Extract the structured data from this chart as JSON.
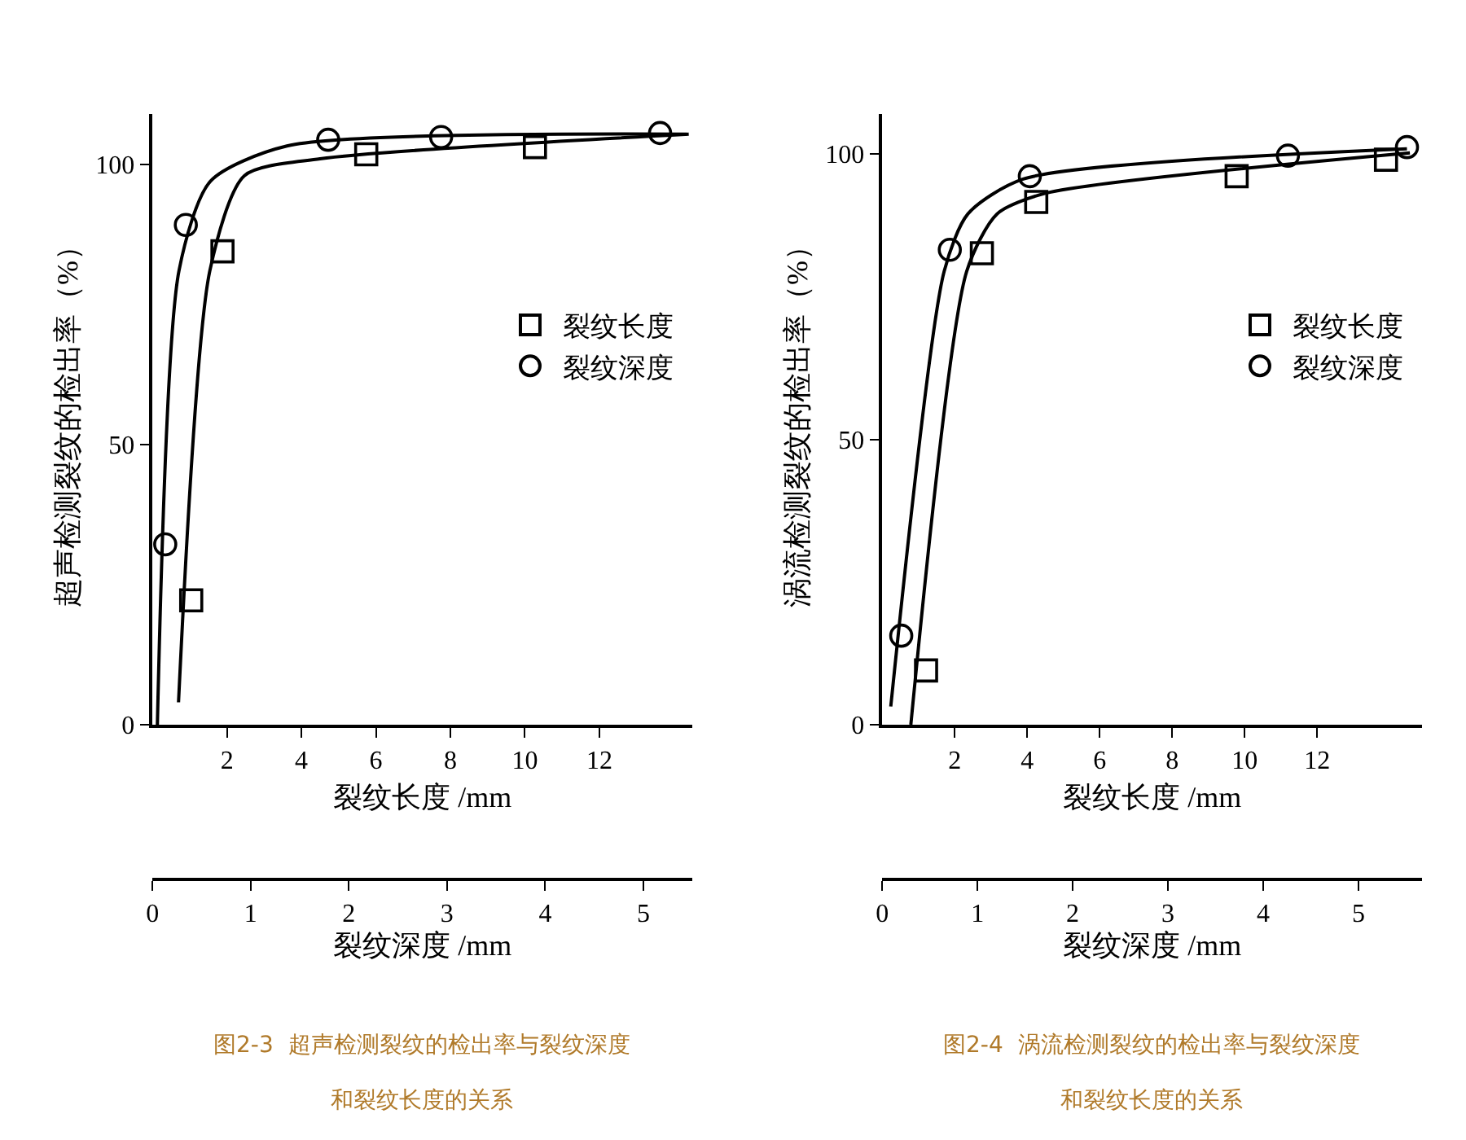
{
  "chart_data": [
    {
      "type": "scatter",
      "ylabel": "超声检测裂纹的检出率（%）",
      "xlabel": "裂纹长度 /mm",
      "x2label": "裂纹深度 /mm",
      "xlim": [
        0,
        14.5
      ],
      "xticks": [
        2,
        4,
        6,
        8,
        10,
        12
      ],
      "x2lim": [
        0,
        5.5
      ],
      "x2ticks": [
        0,
        1,
        2,
        3,
        4,
        5
      ],
      "ylim": [
        0,
        109
      ],
      "yticks": [
        0,
        50,
        100
      ],
      "legend": "right",
      "series": [
        {
          "name": "裂纹长度",
          "marker": "square",
          "color": "#000000",
          "x": [
            1.04,
            1.88,
            5.74,
            10.27
          ],
          "values": [
            22.2,
            84.5,
            101.8,
            103.1
          ]
        },
        {
          "name": "裂纹深度",
          "marker": "circle",
          "color": "#000000",
          "axis": "x2",
          "x": [
            0.13,
            0.34,
            1.79,
            2.94,
            5.17
          ],
          "values": [
            32.2,
            89.2,
            104.4,
            104.9,
            105.6
          ]
        },
        {
          "type": "line",
          "marker": "none",
          "color": "#000000",
          "x": [
            0.7,
            1.54,
            2.47,
            4.5,
            14.4
          ],
          "values": [
            4,
            81,
            98,
            101,
            105.4
          ]
        },
        {
          "type": "line",
          "marker": "none",
          "color": "#000000",
          "axis": "x2",
          "x": [
            0.05,
            0.27,
            0.59,
            1.37,
            5.44
          ],
          "values": [
            0,
            81,
            97,
            103.3,
            105.4
          ]
        }
      ],
      "annotations": [
        "图2-3  超声检测裂纹的检出率与裂纹深度",
        "和裂纹长度的关系"
      ]
    },
    {
      "type": "scatter",
      "ylabel": "涡流检测裂纹的检出率（%）",
      "xlabel": "裂纹长度 /mm",
      "x2label": "裂纹深度 /mm",
      "xlim": [
        0,
        14.9
      ],
      "xticks": [
        2,
        4,
        6,
        8,
        10,
        12
      ],
      "x2lim": [
        0,
        5.67
      ],
      "x2ticks": [
        0,
        1,
        2,
        3,
        4,
        5
      ],
      "ylim": [
        0,
        107
      ],
      "yticks": [
        0,
        50,
        100
      ],
      "legend": "right",
      "series": [
        {
          "name": "裂纹长度",
          "marker": "square",
          "color": "#000000",
          "x": [
            1.21,
            2.75,
            4.25,
            9.78,
            13.9
          ],
          "values": [
            9.5,
            82.6,
            91.6,
            96.1,
            99.0
          ]
        },
        {
          "name": "裂纹深度",
          "marker": "circle",
          "color": "#000000",
          "axis": "x2",
          "x": [
            0.2,
            0.71,
            1.55,
            4.26,
            5.51
          ],
          "values": [
            15.6,
            83.2,
            96.1,
            99.7,
            101.2
          ]
        },
        {
          "type": "line",
          "marker": "none",
          "color": "#000000",
          "x": [
            0.79,
            2.33,
            3.17,
            4.5,
            14.56
          ],
          "values": [
            0,
            79.4,
            89.5,
            93.1,
            100.2
          ]
        },
        {
          "type": "line",
          "marker": "none",
          "color": "#000000",
          "axis": "x2",
          "x": [
            0.09,
            0.65,
            0.9,
            1.48,
            5.51
          ],
          "values": [
            3.2,
            79.4,
            89.5,
            95.6,
            100.9
          ]
        }
      ],
      "annotations": [
        "图2-4  涡流检测裂纹的检出率与裂纹深度",
        "和裂纹长度的关系"
      ]
    }
  ]
}
